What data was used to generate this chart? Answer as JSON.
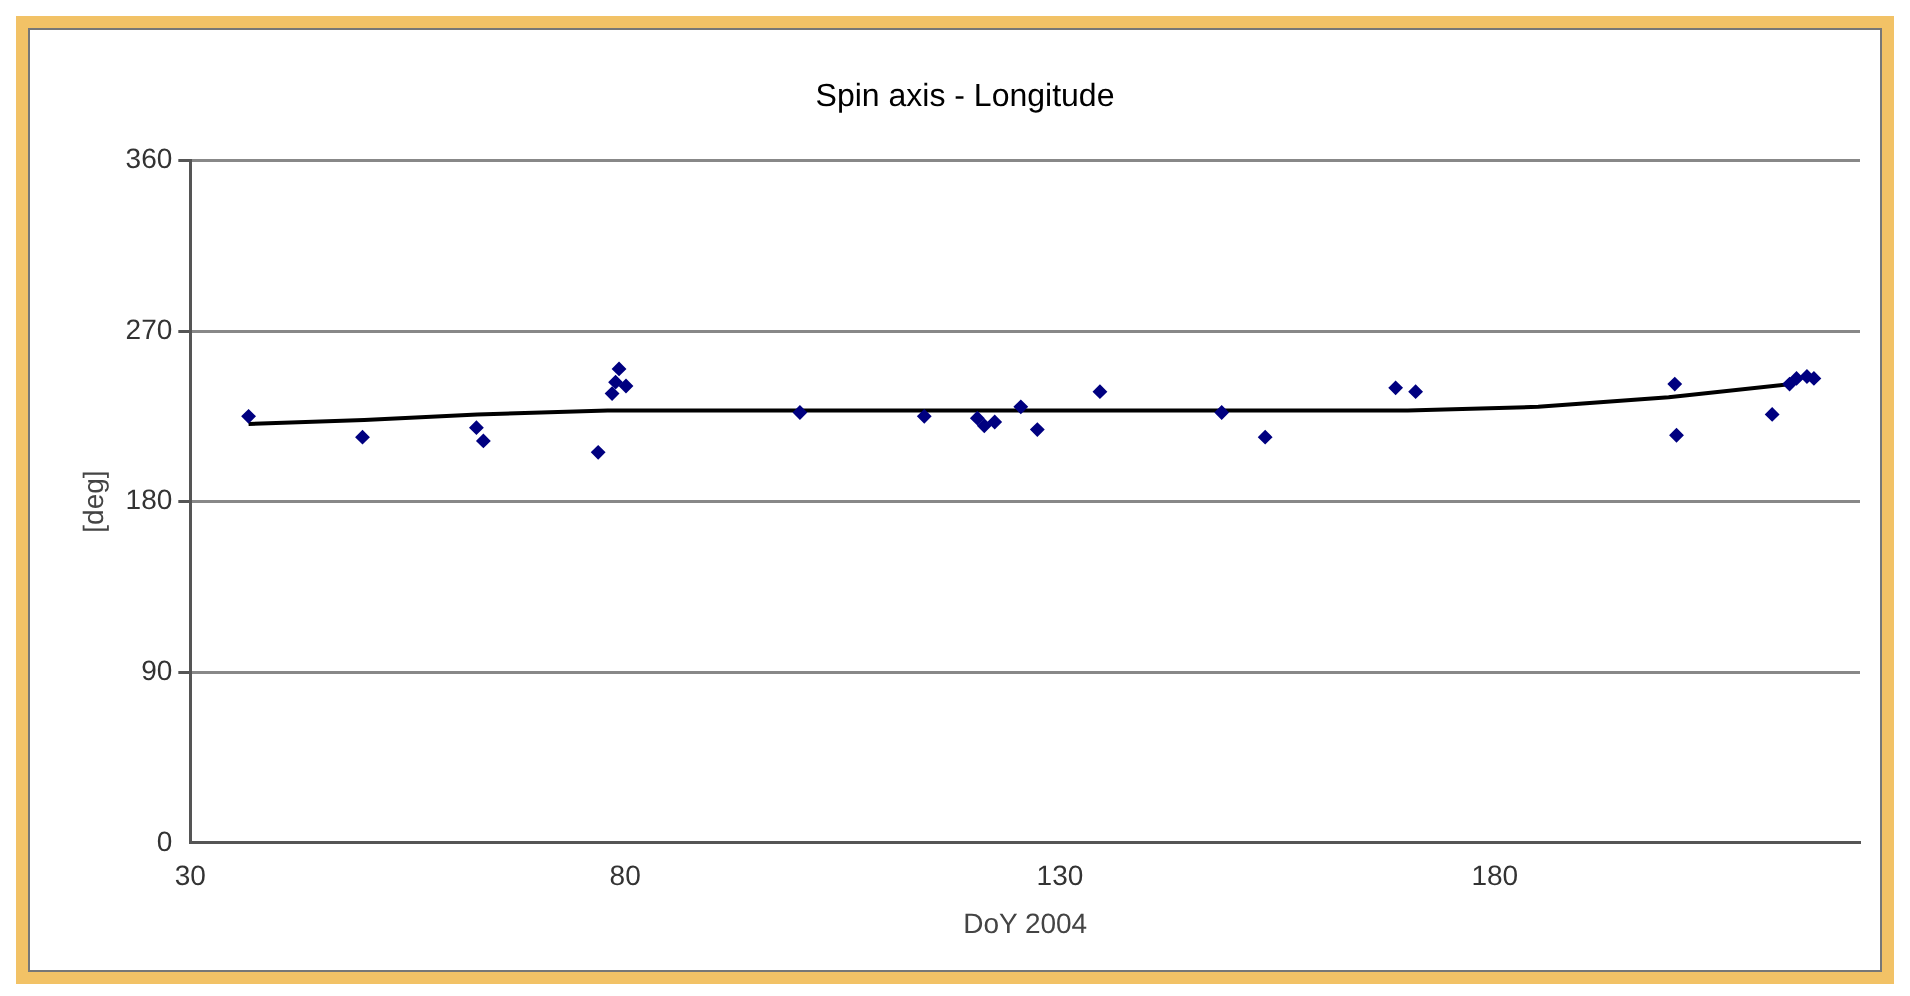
{
  "chart_data": {
    "type": "scatter",
    "title": "Spin axis - Longitude",
    "xlabel": "DoY 2004",
    "ylabel": "[deg]",
    "xlim": [
      30,
      222
    ],
    "xticks": [
      30,
      80,
      130,
      180
    ],
    "ylim": [
      0,
      360
    ],
    "yticks": [
      0,
      90,
      180,
      270,
      360
    ],
    "grid": "y",
    "legend": false,
    "marker": "diamond",
    "series": [
      {
        "type": "scatter",
        "color": "#000080",
        "x": [
          36.7,
          49.8,
          62.9,
          63.7,
          76.9,
          79.3,
          78.9,
          80.1,
          78.5,
          100.1,
          114.4,
          120.5,
          121.3,
          122.5,
          125.5,
          127.4,
          134.6,
          148.6,
          153.6,
          168.6,
          170.9,
          200.7,
          200.9,
          211.9,
          214.7,
          215.9,
          216.7,
          213.9
        ],
        "values": [
          225,
          214,
          219,
          212,
          206,
          250,
          243,
          241,
          237,
          227,
          225,
          224,
          220,
          222,
          230,
          218,
          238,
          227,
          214,
          240,
          238,
          242,
          215,
          226,
          245,
          246,
          245,
          242
        ]
      },
      {
        "type": "line",
        "color": "#000000",
        "marker": "none",
        "x": [
          36.7,
          50,
          63,
          78,
          100,
          128,
          145,
          170,
          185,
          200,
          214
        ],
        "values": [
          221,
          223,
          226,
          228,
          228,
          228,
          228,
          228,
          230,
          235,
          242
        ]
      }
    ]
  }
}
